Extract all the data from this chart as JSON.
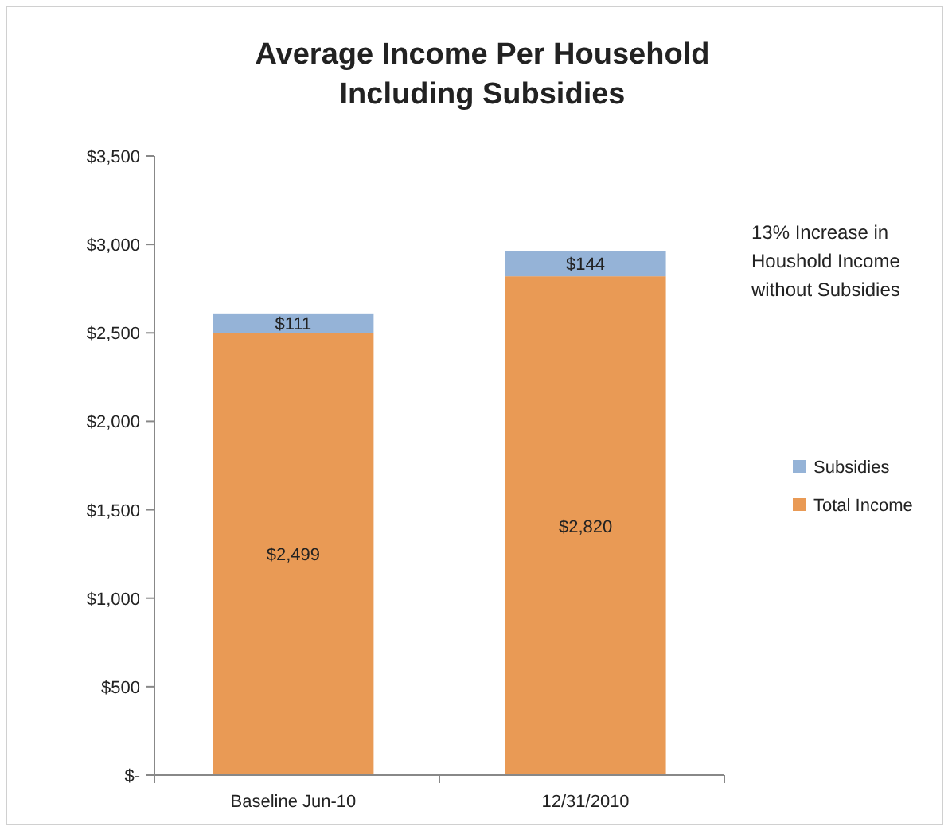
{
  "chart_data": {
    "type": "bar",
    "title": "Average Income Per Household Including Subsidies",
    "categories": [
      "Baseline Jun-10",
      "12/31/2010"
    ],
    "stacked": true,
    "series": [
      {
        "name": "Total Income",
        "color": "#e99a55",
        "values": [
          2499,
          2820
        ],
        "value_labels": [
          "$2,499",
          "$2,820"
        ]
      },
      {
        "name": "Subsidies",
        "color": "#95b3d7",
        "values": [
          111,
          144
        ],
        "value_labels": [
          "$111",
          "$144"
        ]
      }
    ],
    "ylim": [
      0,
      3500
    ],
    "yticks": [
      {
        "value": 0,
        "label": "$-"
      },
      {
        "value": 500,
        "label": "$500"
      },
      {
        "value": 1000,
        "label": "$1,000"
      },
      {
        "value": 1500,
        "label": "$1,500"
      },
      {
        "value": 2000,
        "label": "$2,000"
      },
      {
        "value": 2500,
        "label": "$2,500"
      },
      {
        "value": 3000,
        "label": "$3,000"
      },
      {
        "value": 3500,
        "label": "$3,500"
      }
    ],
    "grid": false,
    "legend": "right",
    "annotations": [
      "13%  Increase in Houshold Income without Subsidies"
    ]
  }
}
